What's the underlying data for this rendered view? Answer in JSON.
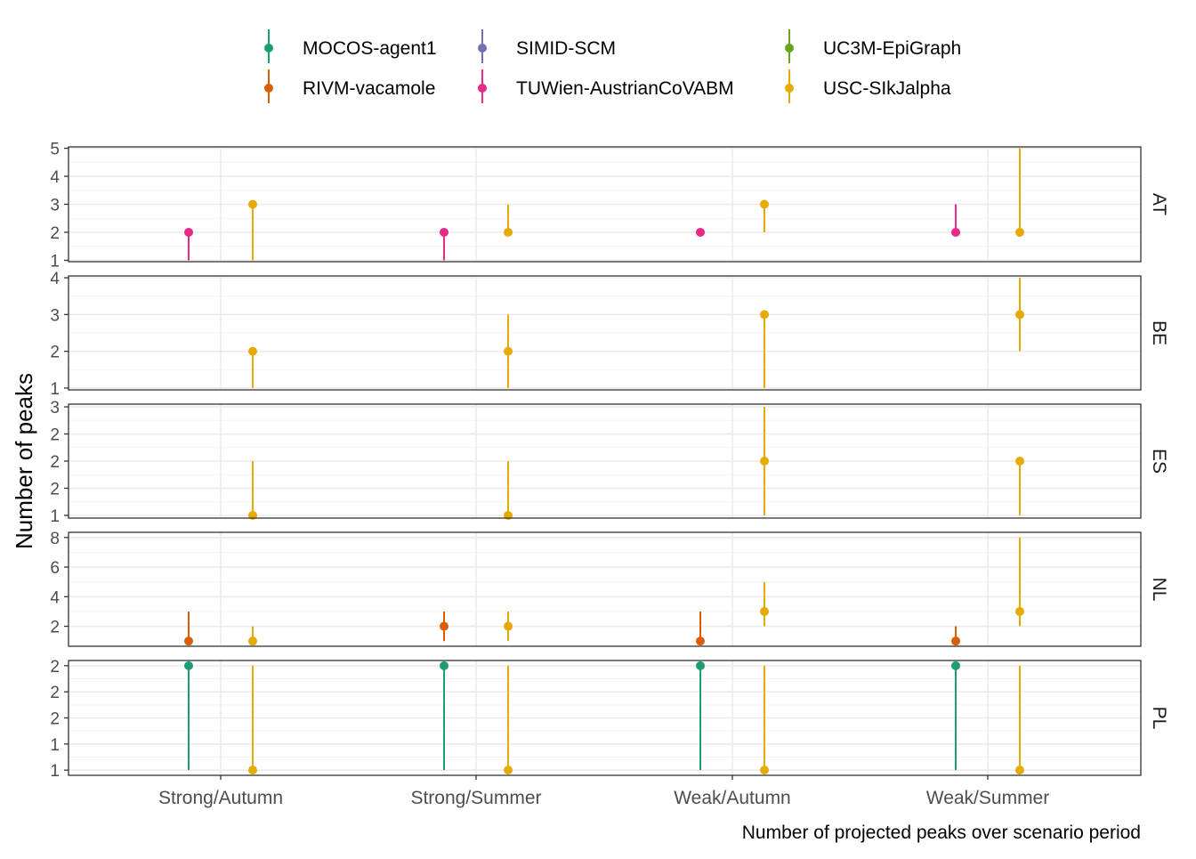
{
  "chart_data": {
    "type": "scatter",
    "ylabel": "Number of peaks",
    "xlabel": "Number of projected peaks over scenario period",
    "categories": [
      "Strong/Autumn",
      "Strong/Summer",
      "Weak/Autumn",
      "Weak/Summer"
    ],
    "legend_position": "top",
    "grid": true,
    "series": [
      {
        "name": "MOCOS-agent1",
        "color": "#1b9e77"
      },
      {
        "name": "SIMID-SCM",
        "color": "#7570b3"
      },
      {
        "name": "UC3M-EpiGraph",
        "color": "#66a61e"
      },
      {
        "name": "RIVM-vacamole",
        "color": "#d95f02"
      },
      {
        "name": "TUWien-AustrianCoVABM",
        "color": "#e7298a"
      },
      {
        "name": "USC-SIkJalpha",
        "color": "#e6ab02"
      }
    ],
    "panels": [
      {
        "name": "AT",
        "ylim": [
          0.95,
          5.05
        ],
        "ticks": [
          {
            "v": 1,
            "label": "1"
          },
          {
            "v": 2,
            "label": "2"
          },
          {
            "v": 3,
            "label": "3"
          },
          {
            "v": 4,
            "label": "4"
          },
          {
            "v": 5,
            "label": "5"
          }
        ],
        "points": [
          {
            "category": "Strong/Autumn",
            "series": "TUWien-AustrianCoVABM",
            "median": 2,
            "low": 1,
            "high": 2
          },
          {
            "category": "Strong/Autumn",
            "series": "USC-SIkJalpha",
            "median": 3,
            "low": 1,
            "high": 3
          },
          {
            "category": "Strong/Summer",
            "series": "TUWien-AustrianCoVABM",
            "median": 2,
            "low": 1,
            "high": 2
          },
          {
            "category": "Strong/Summer",
            "series": "USC-SIkJalpha",
            "median": 2,
            "low": 2,
            "high": 3
          },
          {
            "category": "Weak/Autumn",
            "series": "TUWien-AustrianCoVABM",
            "median": 2,
            "low": 2,
            "high": 2
          },
          {
            "category": "Weak/Autumn",
            "series": "USC-SIkJalpha",
            "median": 3,
            "low": 2,
            "high": 3
          },
          {
            "category": "Weak/Summer",
            "series": "TUWien-AustrianCoVABM",
            "median": 2,
            "low": 2,
            "high": 3
          },
          {
            "category": "Weak/Summer",
            "series": "USC-SIkJalpha",
            "median": 2,
            "low": 2,
            "high": 5
          }
        ]
      },
      {
        "name": "BE",
        "ylim": [
          0.95,
          4.05
        ],
        "ticks": [
          {
            "v": 1,
            "label": "1"
          },
          {
            "v": 2,
            "label": "2"
          },
          {
            "v": 3,
            "label": "3"
          },
          {
            "v": 4,
            "label": "4"
          }
        ],
        "points": [
          {
            "category": "Strong/Autumn",
            "series": "USC-SIkJalpha",
            "median": 2,
            "low": 1,
            "high": 2
          },
          {
            "category": "Strong/Summer",
            "series": "USC-SIkJalpha",
            "median": 2,
            "low": 1,
            "high": 3
          },
          {
            "category": "Weak/Autumn",
            "series": "USC-SIkJalpha",
            "median": 3,
            "low": 1,
            "high": 3
          },
          {
            "category": "Weak/Summer",
            "series": "USC-SIkJalpha",
            "median": 3,
            "low": 2,
            "high": 4
          }
        ]
      },
      {
        "name": "ES",
        "ylim": [
          0.95,
          3.05
        ],
        "ticks": [
          {
            "v": 1,
            "label": "1"
          },
          {
            "v": 1.5,
            "label": "2"
          },
          {
            "v": 2,
            "label": "2"
          },
          {
            "v": 2.5,
            "label": "2"
          },
          {
            "v": 3,
            "label": "3"
          }
        ],
        "points": [
          {
            "category": "Strong/Autumn",
            "series": "USC-SIkJalpha",
            "median": 1,
            "low": 1,
            "high": 2
          },
          {
            "category": "Strong/Summer",
            "series": "USC-SIkJalpha",
            "median": 1,
            "low": 1,
            "high": 2
          },
          {
            "category": "Weak/Autumn",
            "series": "USC-SIkJalpha",
            "median": 2,
            "low": 1,
            "high": 3
          },
          {
            "category": "Weak/Summer",
            "series": "USC-SIkJalpha",
            "median": 2,
            "low": 1,
            "high": 2
          }
        ]
      },
      {
        "name": "NL",
        "ylim": [
          0.65,
          8.35
        ],
        "ticks": [
          {
            "v": 2,
            "label": "2"
          },
          {
            "v": 4,
            "label": "4"
          },
          {
            "v": 6,
            "label": "6"
          },
          {
            "v": 8,
            "label": "8"
          }
        ],
        "points": [
          {
            "category": "Strong/Autumn",
            "series": "RIVM-vacamole",
            "median": 1,
            "low": 1,
            "high": 3
          },
          {
            "category": "Strong/Autumn",
            "series": "USC-SIkJalpha",
            "median": 1,
            "low": 1,
            "high": 2
          },
          {
            "category": "Strong/Summer",
            "series": "RIVM-vacamole",
            "median": 2,
            "low": 1,
            "high": 3
          },
          {
            "category": "Strong/Summer",
            "series": "USC-SIkJalpha",
            "median": 2,
            "low": 1,
            "high": 3
          },
          {
            "category": "Weak/Autumn",
            "series": "RIVM-vacamole",
            "median": 1,
            "low": 1,
            "high": 3
          },
          {
            "category": "Weak/Autumn",
            "series": "USC-SIkJalpha",
            "median": 3,
            "low": 2,
            "high": 5
          },
          {
            "category": "Weak/Summer",
            "series": "RIVM-vacamole",
            "median": 1,
            "low": 1,
            "high": 2
          },
          {
            "category": "Weak/Summer",
            "series": "USC-SIkJalpha",
            "median": 3,
            "low": 2,
            "high": 8
          }
        ]
      },
      {
        "name": "PL",
        "ylim": [
          0.95,
          2.05
        ],
        "ticks": [
          {
            "v": 1,
            "label": "1"
          },
          {
            "v": 1.25,
            "label": "1"
          },
          {
            "v": 1.5,
            "label": "2"
          },
          {
            "v": 1.75,
            "label": "2"
          },
          {
            "v": 2,
            "label": "2"
          }
        ],
        "points": [
          {
            "category": "Strong/Autumn",
            "series": "MOCOS-agent1",
            "median": 2,
            "low": 1,
            "high": 2
          },
          {
            "category": "Strong/Autumn",
            "series": "USC-SIkJalpha",
            "median": 1,
            "low": 1,
            "high": 2
          },
          {
            "category": "Strong/Summer",
            "series": "MOCOS-agent1",
            "median": 2,
            "low": 1,
            "high": 2
          },
          {
            "category": "Strong/Summer",
            "series": "USC-SIkJalpha",
            "median": 1,
            "low": 1,
            "high": 2
          },
          {
            "category": "Weak/Autumn",
            "series": "MOCOS-agent1",
            "median": 2,
            "low": 1,
            "high": 2
          },
          {
            "category": "Weak/Autumn",
            "series": "USC-SIkJalpha",
            "median": 1,
            "low": 1,
            "high": 2
          },
          {
            "category": "Weak/Summer",
            "series": "MOCOS-agent1",
            "median": 2,
            "low": 1,
            "high": 2
          },
          {
            "category": "Weak/Summer",
            "series": "USC-SIkJalpha",
            "median": 1,
            "low": 1,
            "high": 2
          }
        ]
      }
    ]
  }
}
